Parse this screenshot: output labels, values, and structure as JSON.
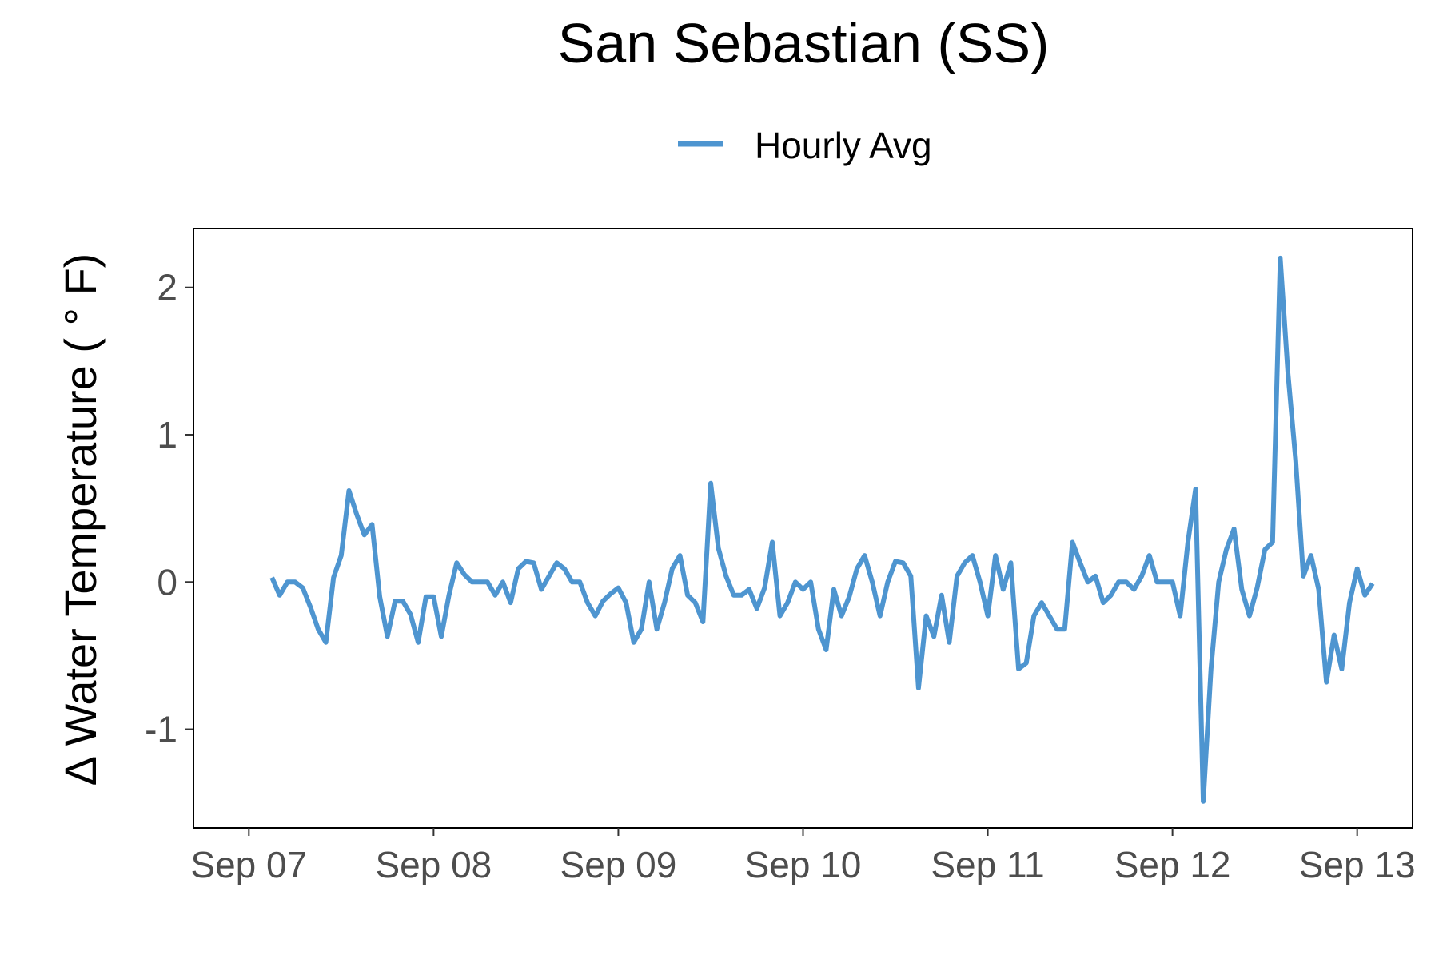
{
  "chart_data": {
    "type": "line",
    "title": "San Sebastian (SS)",
    "ylabel": "Δ Water Temperature ( ° F)",
    "xlabel": "",
    "x_ticks": [
      "Sep 07",
      "Sep 08",
      "Sep 09",
      "Sep 10",
      "Sep 11",
      "Sep 12",
      "Sep 13"
    ],
    "y_ticks": [
      -1,
      0,
      1,
      2
    ],
    "xlim_days": [
      6.7,
      13.3
    ],
    "ylim": [
      -1.67,
      2.4
    ],
    "legend": "top-center",
    "grid": false,
    "series": [
      {
        "name": "Hourly Avg",
        "color": "#4e95d0",
        "x_start": "Sep 07 03:00",
        "x_step_hours": 1,
        "values": [
          0.03,
          -0.09,
          0.0,
          0.0,
          -0.04,
          -0.17,
          -0.32,
          -0.41,
          0.03,
          0.18,
          0.62,
          0.46,
          0.32,
          0.39,
          -0.1,
          -0.37,
          -0.13,
          -0.13,
          -0.22,
          -0.41,
          -0.1,
          -0.1,
          -0.37,
          -0.09,
          0.13,
          0.05,
          0.0,
          0.0,
          0.0,
          -0.09,
          0.0,
          -0.14,
          0.09,
          0.14,
          0.13,
          -0.05,
          0.04,
          0.13,
          0.09,
          0.0,
          0.0,
          -0.14,
          -0.23,
          -0.13,
          -0.08,
          -0.04,
          -0.14,
          -0.41,
          -0.32,
          0.0,
          -0.32,
          -0.14,
          0.09,
          0.18,
          -0.09,
          -0.14,
          -0.27,
          0.67,
          0.23,
          0.04,
          -0.09,
          -0.09,
          -0.05,
          -0.18,
          -0.04,
          0.27,
          -0.23,
          -0.14,
          0.0,
          -0.05,
          0.0,
          -0.32,
          -0.46,
          -0.05,
          -0.23,
          -0.1,
          0.09,
          0.18,
          0.0,
          -0.23,
          0.0,
          0.14,
          0.13,
          0.04,
          -0.72,
          -0.23,
          -0.37,
          -0.09,
          -0.41,
          0.04,
          0.13,
          0.18,
          0.0,
          -0.23,
          0.18,
          -0.05,
          0.13,
          -0.59,
          -0.55,
          -0.23,
          -0.14,
          -0.23,
          -0.32,
          -0.32,
          0.27,
          0.13,
          0.0,
          0.04,
          -0.14,
          -0.09,
          0.0,
          0.0,
          -0.05,
          0.04,
          0.18,
          0.0,
          0.0,
          0.0,
          -0.23,
          0.27,
          0.63,
          -1.49,
          -0.59,
          0.0,
          0.22,
          0.36,
          -0.05,
          -0.23,
          -0.04,
          0.22,
          0.27,
          2.2,
          1.42,
          0.83,
          0.04,
          0.18,
          -0.05,
          -0.68,
          -0.36,
          -0.59,
          -0.14,
          0.09,
          -0.09,
          -0.01
        ]
      }
    ]
  }
}
